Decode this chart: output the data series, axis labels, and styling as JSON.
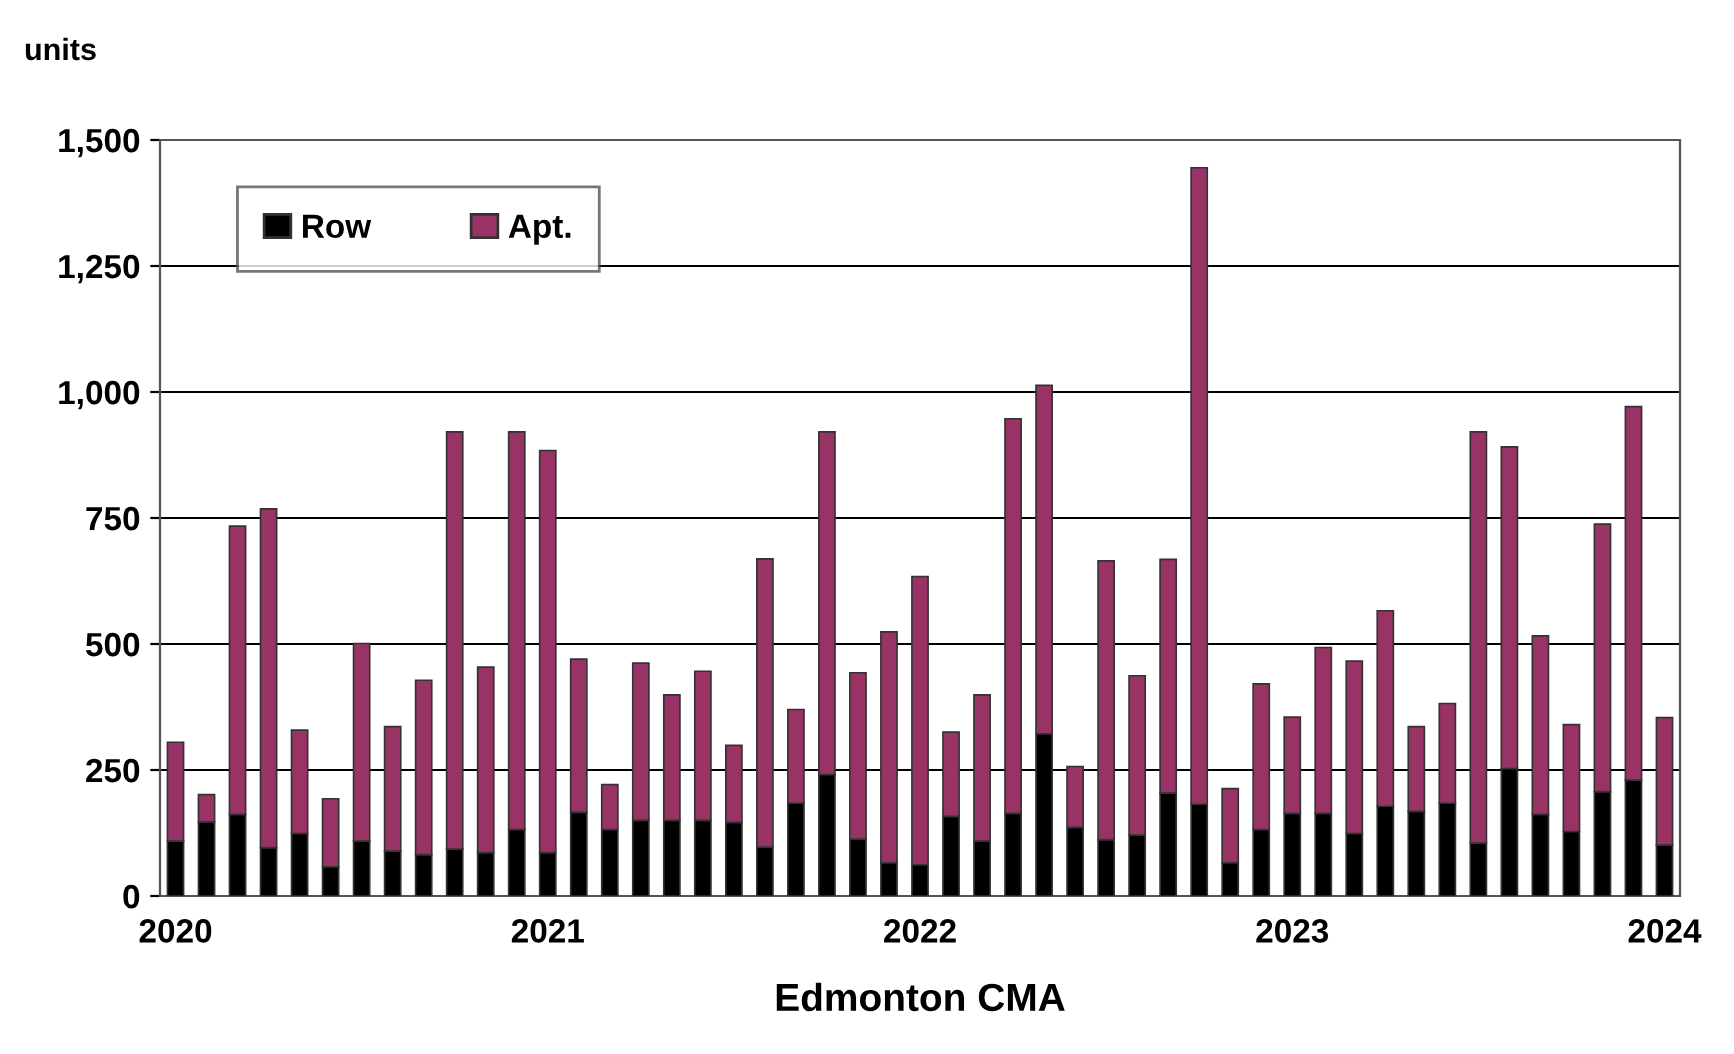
{
  "chart_data": {
    "type": "bar",
    "stacked": true,
    "ylabel": "units",
    "xlabel": "Edmonton CMA",
    "categories": [
      "2020",
      null,
      null,
      null,
      null,
      null,
      null,
      null,
      null,
      null,
      null,
      null,
      "2021",
      null,
      null,
      null,
      null,
      null,
      null,
      null,
      null,
      null,
      null,
      null,
      "2022",
      null,
      null,
      null,
      null,
      null,
      null,
      null,
      null,
      null,
      null,
      null,
      "2023",
      null,
      null,
      null,
      null,
      null,
      null,
      null,
      null,
      null,
      null,
      null,
      "2024"
    ],
    "series": [
      {
        "name": "Row",
        "color": "#000000",
        "values": [
          109,
          147,
          162,
          96,
          124,
          58,
          109,
          89,
          82,
          93,
          86,
          132,
          86,
          166,
          132,
          150,
          150,
          150,
          146,
          97,
          184,
          241,
          113,
          66,
          62,
          158,
          109,
          164,
          322,
          136,
          112,
          121,
          204,
          182,
          66,
          132,
          164,
          164,
          124,
          178,
          168,
          184,
          105,
          253,
          162,
          128,
          207,
          230,
          101
        ]
      },
      {
        "name": "Apt.",
        "color": "#993366",
        "values": [
          196,
          54,
          572,
          672,
          205,
          135,
          392,
          247,
          346,
          828,
          368,
          789,
          798,
          304,
          89,
          312,
          249,
          296,
          153,
          572,
          186,
          680,
          330,
          458,
          572,
          167,
          290,
          783,
          691,
          121,
          553,
          316,
          464,
          1263,
          147,
          289,
          191,
          329,
          342,
          388,
          168,
          198,
          816,
          638,
          354,
          212,
          531,
          741,
          253
        ]
      }
    ],
    "ylim": [
      0,
      1500
    ],
    "yticks": [
      0,
      {
        "value": 250,
        "label": "250"
      },
      {
        "value": 500,
        "label": "500"
      },
      {
        "value": 750,
        "label": "750"
      },
      {
        "value": 1000,
        "label": "1,000"
      },
      {
        "value": 1250,
        "label": "1,250"
      },
      {
        "value": 1500,
        "label": "1,500"
      }
    ],
    "grid": "y",
    "legend": "top left"
  }
}
